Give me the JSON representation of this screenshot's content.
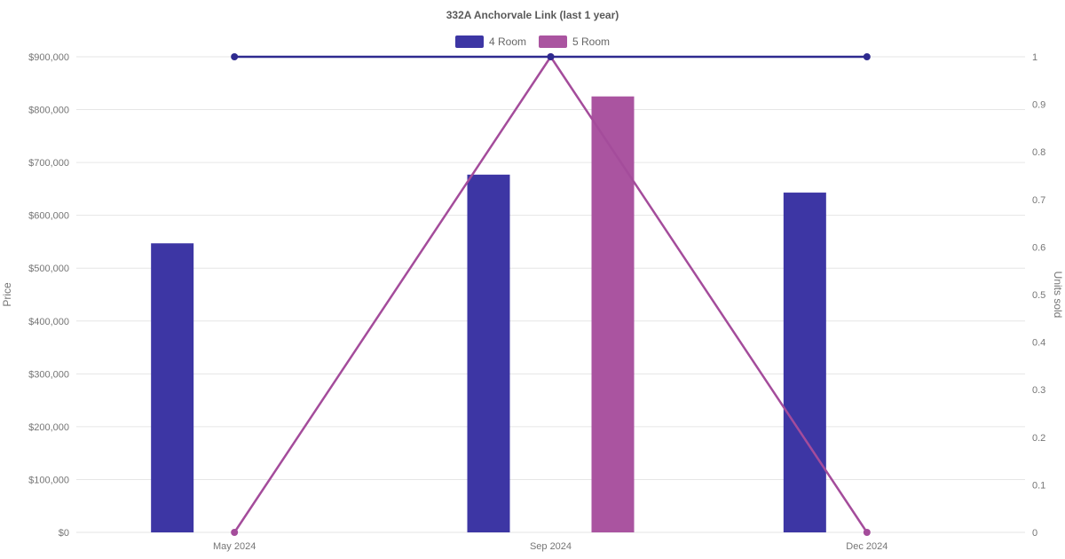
{
  "title": "332A Anchorvale Link (last 1 year)",
  "legend": [
    {
      "label": "4 Room",
      "color": "#3d36a4"
    },
    {
      "label": "5 Room",
      "color": "#aa54a0"
    }
  ],
  "colors": {
    "bar_4_room": "#3d36a4",
    "bar_5_room": "#aa54a0",
    "line_4_room": "#2e2a8f",
    "line_5_room": "#a44c9b",
    "gridline": "#e6e6e6",
    "axis_text": "#757575",
    "title_text": "#5a5a5a"
  },
  "chart_data": {
    "type": "bar",
    "subtype": "bar-with-lines",
    "title": "332A Anchorvale Link (last 1 year)",
    "categories": [
      "May 2024",
      "Sep 2024",
      "Dec 2024"
    ],
    "left_axis": {
      "label": "Price",
      "min": 0,
      "max": 900000,
      "step": 100000,
      "tick_labels": [
        "$0",
        "$100,000",
        "$200,000",
        "$300,000",
        "$400,000",
        "$500,000",
        "$600,000",
        "$700,000",
        "$800,000",
        "$900,000"
      ]
    },
    "right_axis": {
      "label": "Units sold",
      "min": 0,
      "max": 1,
      "step": 0.1,
      "tick_labels": [
        "0",
        "0.1",
        "0.2",
        "0.3",
        "0.4",
        "0.5",
        "0.6",
        "0.7",
        "0.8",
        "0.9",
        "1"
      ]
    },
    "bar_series": [
      {
        "name": "4 Room",
        "axis": "left",
        "color": "#3d36a4",
        "values": [
          547000,
          677000,
          643000
        ]
      },
      {
        "name": "5 Room",
        "axis": "left",
        "color": "#aa54a0",
        "values": [
          null,
          825000,
          null
        ]
      }
    ],
    "line_series": [
      {
        "name": "4 Room",
        "axis": "right",
        "color": "#2e2a8f",
        "values": [
          1,
          1,
          1
        ]
      },
      {
        "name": "5 Room",
        "axis": "right",
        "color": "#a44c9b",
        "values": [
          0,
          1,
          0
        ]
      }
    ],
    "grid": true,
    "legend_position": "top"
  }
}
